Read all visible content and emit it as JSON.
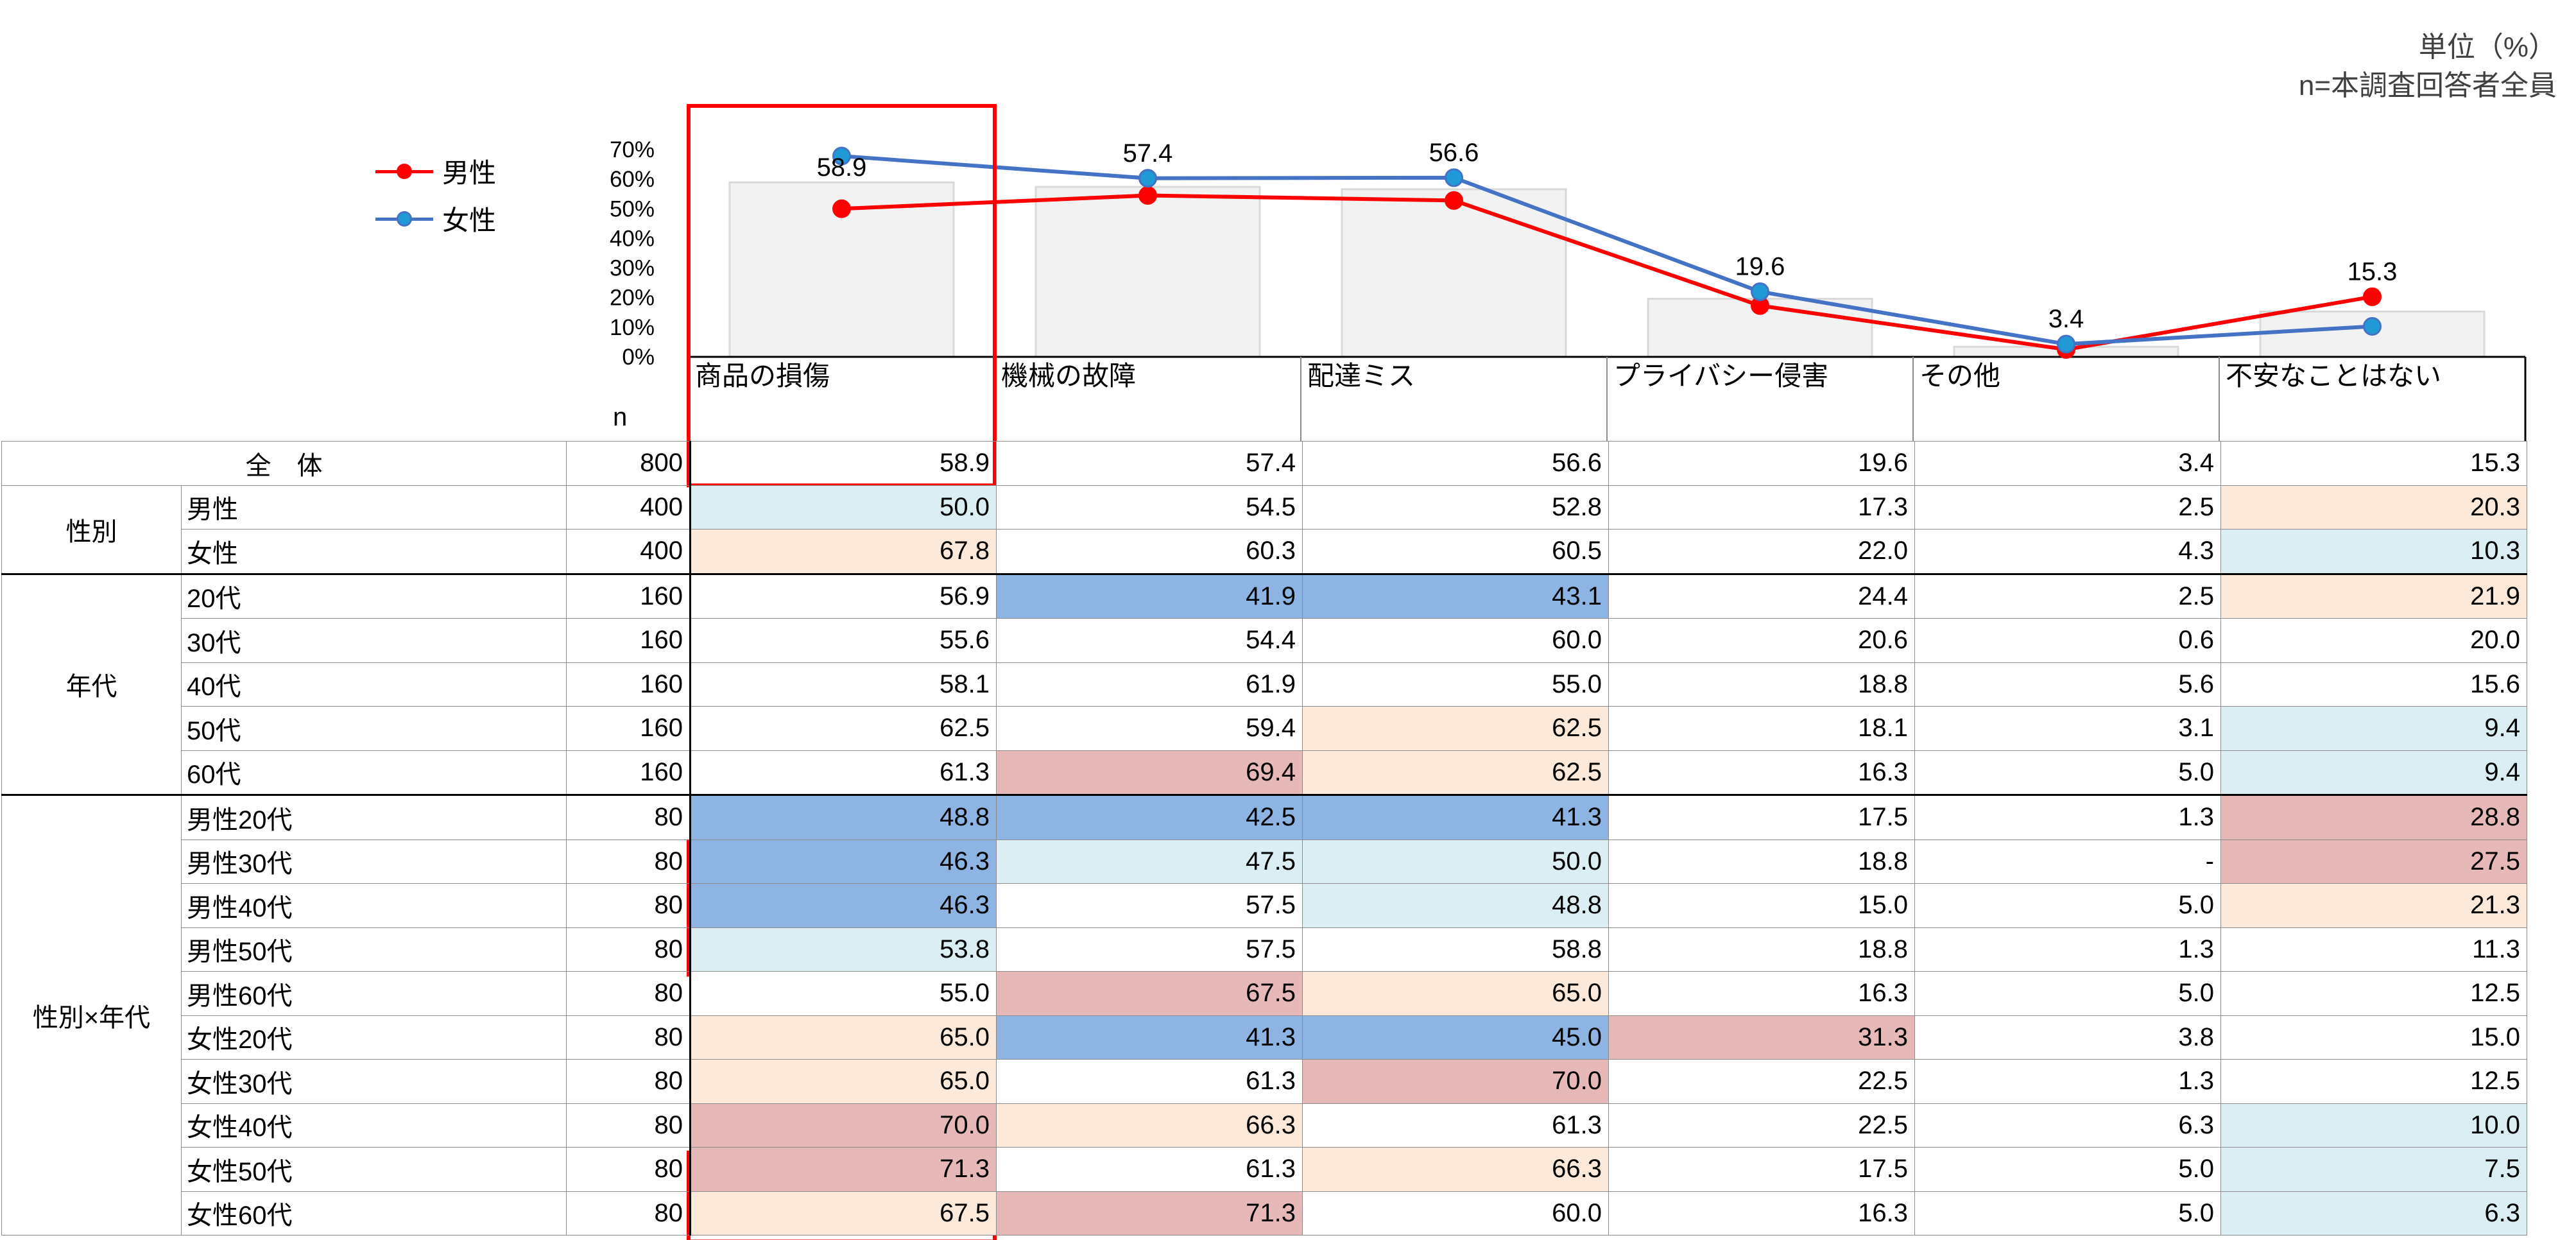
{
  "unit_note": {
    "line1": "単位（%）",
    "line2": "n=本調査回答者全員"
  },
  "legend": [
    {
      "label": "男性",
      "color": "#ff0000"
    },
    {
      "label": "女性",
      "color": "#4472c4"
    }
  ],
  "n_header": "n",
  "colors": {
    "bar_fill": "#f2f2f2",
    "bar_stroke": "#d9d9d9",
    "male": "#ff0000",
    "female": "#4472c4",
    "female_marker": "#1f9ad6",
    "highlight_box": "#ff0000"
  },
  "chart_data": {
    "type": "bar",
    "categories": [
      "商品の損傷",
      "機械の故障",
      "配達ミス",
      "プライバシー侵害",
      "その他",
      "不安なことはない"
    ],
    "y_ticks": [
      "0%",
      "10%",
      "20%",
      "30%",
      "40%",
      "50%",
      "60%",
      "70%"
    ],
    "ylim": [
      0,
      70
    ],
    "series": [
      {
        "values": [
          58.9,
          57.4,
          56.6,
          19.6,
          3.4,
          15.3
        ],
        "kind": "bar",
        "data_labels": [
          "58.9",
          "57.4",
          "56.6",
          "19.6",
          "3.4",
          "15.3"
        ]
      },
      {
        "name": "男性",
        "kind": "line",
        "values": [
          50.0,
          54.5,
          52.8,
          17.3,
          2.5,
          20.3
        ]
      },
      {
        "name": "女性",
        "kind": "line",
        "values": [
          67.8,
          60.3,
          60.5,
          22.0,
          4.3,
          10.3
        ]
      }
    ],
    "legend_position": "left",
    "grid": false
  },
  "table": {
    "total": {
      "label": "全　体",
      "n": "800",
      "values": [
        "58.9",
        "57.4",
        "56.6",
        "19.6",
        "3.4",
        "15.3"
      ]
    },
    "groups": [
      {
        "label": "性別",
        "rows": [
          {
            "label": "男性",
            "n": "400",
            "values": [
              "50.0",
              "54.5",
              "52.8",
              "17.3",
              "2.5",
              "20.3"
            ],
            "shades": [
              "lb",
              "",
              "",
              "",
              "",
              "lo"
            ]
          },
          {
            "label": "女性",
            "n": "400",
            "values": [
              "67.8",
              "60.3",
              "60.5",
              "22.0",
              "4.3",
              "10.3"
            ],
            "shades": [
              "lo",
              "",
              "",
              "",
              "",
              "lb"
            ]
          }
        ]
      },
      {
        "label": "年代",
        "rows": [
          {
            "label": "20代",
            "n": "160",
            "values": [
              "56.9",
              "41.9",
              "43.1",
              "24.4",
              "2.5",
              "21.9"
            ],
            "shades": [
              "",
              "hb",
              "hb",
              "",
              "",
              "lo"
            ]
          },
          {
            "label": "30代",
            "n": "160",
            "values": [
              "55.6",
              "54.4",
              "60.0",
              "20.6",
              "0.6",
              "20.0"
            ],
            "shades": [
              "",
              "",
              "",
              "",
              "",
              ""
            ]
          },
          {
            "label": "40代",
            "n": "160",
            "values": [
              "58.1",
              "61.9",
              "55.0",
              "18.8",
              "5.6",
              "15.6"
            ],
            "shades": [
              "",
              "",
              "",
              "",
              "",
              ""
            ]
          },
          {
            "label": "50代",
            "n": "160",
            "values": [
              "62.5",
              "59.4",
              "62.5",
              "18.1",
              "3.1",
              "9.4"
            ],
            "shades": [
              "",
              "",
              "lo",
              "",
              "",
              "lb"
            ]
          },
          {
            "label": "60代",
            "n": "160",
            "values": [
              "61.3",
              "69.4",
              "62.5",
              "16.3",
              "5.0",
              "9.4"
            ],
            "shades": [
              "",
              "lr",
              "lo",
              "",
              "",
              "lb"
            ]
          }
        ]
      },
      {
        "label": "性別×年代",
        "rows": [
          {
            "label": "男性20代",
            "n": "80",
            "values": [
              "48.8",
              "42.5",
              "41.3",
              "17.5",
              "1.3",
              "28.8"
            ],
            "shades": [
              "hb",
              "hb",
              "hb",
              "",
              "",
              "lr"
            ]
          },
          {
            "label": "男性30代",
            "n": "80",
            "values": [
              "46.3",
              "47.5",
              "50.0",
              "18.8",
              "-",
              "27.5"
            ],
            "shades": [
              "hb",
              "lb",
              "lb",
              "",
              "",
              "lr"
            ]
          },
          {
            "label": "男性40代",
            "n": "80",
            "values": [
              "46.3",
              "57.5",
              "48.8",
              "15.0",
              "5.0",
              "21.3"
            ],
            "shades": [
              "hb",
              "",
              "lb",
              "",
              "",
              "lo"
            ]
          },
          {
            "label": "男性50代",
            "n": "80",
            "values": [
              "53.8",
              "57.5",
              "58.8",
              "18.8",
              "1.3",
              "11.3"
            ],
            "shades": [
              "lb",
              "",
              "",
              "",
              "",
              ""
            ]
          },
          {
            "label": "男性60代",
            "n": "80",
            "values": [
              "55.0",
              "67.5",
              "65.0",
              "16.3",
              "5.0",
              "12.5"
            ],
            "shades": [
              "",
              "lr",
              "lo",
              "",
              "",
              ""
            ]
          },
          {
            "label": "女性20代",
            "n": "80",
            "values": [
              "65.0",
              "41.3",
              "45.0",
              "31.3",
              "3.8",
              "15.0"
            ],
            "shades": [
              "lo",
              "hb",
              "hb",
              "lr",
              "",
              ""
            ]
          },
          {
            "label": "女性30代",
            "n": "80",
            "values": [
              "65.0",
              "61.3",
              "70.0",
              "22.5",
              "1.3",
              "12.5"
            ],
            "shades": [
              "lo",
              "",
              "lr",
              "",
              "",
              ""
            ]
          },
          {
            "label": "女性40代",
            "n": "80",
            "values": [
              "70.0",
              "66.3",
              "61.3",
              "22.5",
              "6.3",
              "10.0"
            ],
            "shades": [
              "lr",
              "lo",
              "",
              "",
              "",
              "lb"
            ]
          },
          {
            "label": "女性50代",
            "n": "80",
            "values": [
              "71.3",
              "61.3",
              "66.3",
              "17.5",
              "5.0",
              "7.5"
            ],
            "shades": [
              "lr",
              "",
              "lo",
              "",
              "",
              "lb"
            ]
          },
          {
            "label": "女性60代",
            "n": "80",
            "values": [
              "67.5",
              "71.3",
              "60.0",
              "16.3",
              "5.0",
              "6.3"
            ],
            "shades": [
              "lo",
              "lr",
              "",
              "",
              "",
              "lb"
            ]
          }
        ]
      }
    ]
  }
}
